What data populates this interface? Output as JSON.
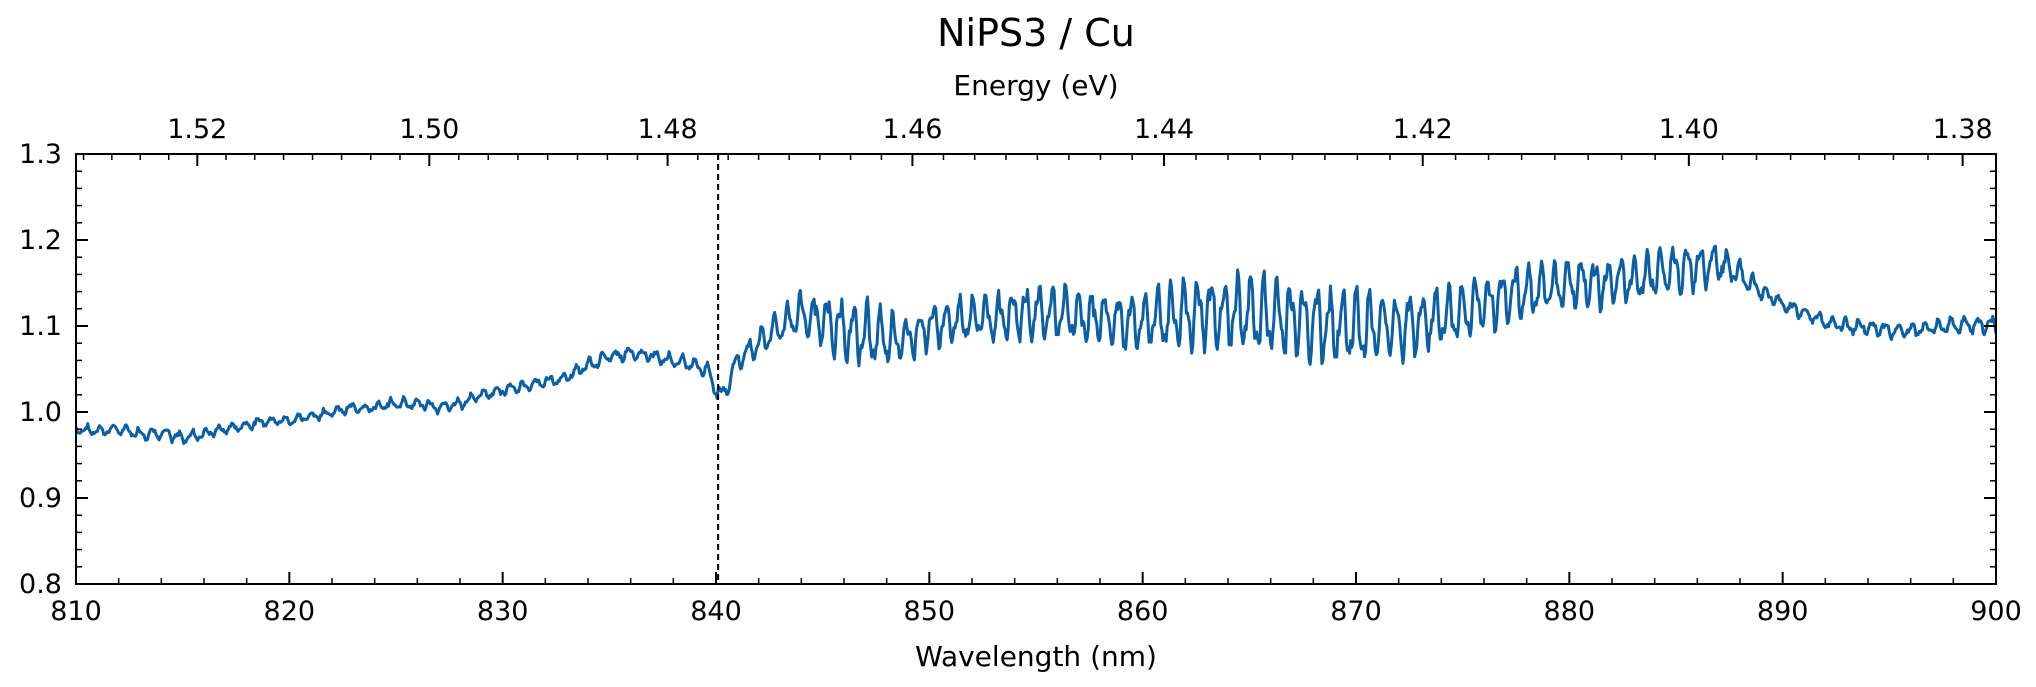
{
  "chart_data": {
    "type": "line",
    "title": "NiPS3 / Cu",
    "xlabel": "Wavelength (nm)",
    "x2label": "Energy (eV)",
    "ylabel": "",
    "xlim": [
      810,
      900
    ],
    "ylim": [
      0.8,
      1.3
    ],
    "x_ticks": [
      810,
      820,
      830,
      840,
      850,
      860,
      870,
      880,
      890,
      900
    ],
    "y_ticks": [
      0.8,
      0.9,
      1.0,
      1.1,
      1.2,
      1.3
    ],
    "x2_ticks": [
      1.52,
      1.5,
      1.48,
      1.46,
      1.44,
      1.42,
      1.4,
      1.38
    ],
    "vline_x": 840.1,
    "line_color": "#0b5fa5",
    "grid": false,
    "series": [
      {
        "x": [
          810,
          811,
          812,
          813,
          814,
          815,
          816,
          817,
          818,
          819,
          820,
          821,
          822,
          823,
          824,
          825,
          826,
          827,
          828,
          829,
          830,
          831,
          832,
          833,
          834,
          835,
          836,
          837,
          838,
          839,
          839.5,
          840,
          840.2,
          840.5,
          841,
          842,
          843,
          844,
          845,
          846,
          847,
          848,
          849,
          850,
          851,
          852,
          853,
          854,
          855,
          856,
          857,
          858,
          859,
          860,
          861,
          862,
          863,
          864,
          865,
          866,
          867,
          868,
          869,
          870,
          871,
          872,
          873,
          874,
          875,
          876,
          877,
          878,
          879,
          880,
          881,
          882,
          883,
          884,
          885,
          886,
          887,
          888,
          889,
          890,
          891,
          892,
          893,
          894,
          895,
          896,
          897,
          898,
          899,
          900
        ],
        "y": [
          0.98,
          0.978,
          0.98,
          0.975,
          0.975,
          0.97,
          0.975,
          0.98,
          0.985,
          0.99,
          0.99,
          0.995,
          1.0,
          1.005,
          1.005,
          1.01,
          1.01,
          1.005,
          1.01,
          1.02,
          1.025,
          1.03,
          1.035,
          1.04,
          1.055,
          1.065,
          1.068,
          1.065,
          1.06,
          1.055,
          1.05,
          1.03,
          1.015,
          1.03,
          1.06,
          1.08,
          1.1,
          1.115,
          1.105,
          1.095,
          1.09,
          1.085,
          1.085,
          1.1,
          1.105,
          1.11,
          1.11,
          1.115,
          1.115,
          1.115,
          1.11,
          1.11,
          1.105,
          1.105,
          1.11,
          1.115,
          1.115,
          1.115,
          1.115,
          1.11,
          1.11,
          1.105,
          1.1,
          1.1,
          1.1,
          1.1,
          1.105,
          1.11,
          1.115,
          1.125,
          1.135,
          1.14,
          1.145,
          1.15,
          1.15,
          1.15,
          1.155,
          1.16,
          1.165,
          1.17,
          1.175,
          1.16,
          1.14,
          1.125,
          1.115,
          1.105,
          1.1,
          1.098,
          1.095,
          1.095,
          1.098,
          1.1,
          1.102,
          1.1
        ],
        "noise": [
          0.004,
          0.004,
          0.005,
          0.005,
          0.005,
          0.005,
          0.005,
          0.004,
          0.004,
          0.004,
          0.004,
          0.004,
          0.004,
          0.004,
          0.004,
          0.005,
          0.005,
          0.005,
          0.005,
          0.005,
          0.005,
          0.005,
          0.005,
          0.005,
          0.006,
          0.006,
          0.006,
          0.006,
          0.006,
          0.007,
          0.008,
          0.01,
          0.01,
          0.01,
          0.01,
          0.012,
          0.015,
          0.02,
          0.025,
          0.03,
          0.03,
          0.025,
          0.02,
          0.02,
          0.02,
          0.02,
          0.022,
          0.025,
          0.025,
          0.025,
          0.025,
          0.025,
          0.025,
          0.028,
          0.03,
          0.032,
          0.035,
          0.035,
          0.038,
          0.038,
          0.035,
          0.035,
          0.035,
          0.035,
          0.032,
          0.03,
          0.03,
          0.028,
          0.028,
          0.025,
          0.025,
          0.025,
          0.022,
          0.022,
          0.022,
          0.022,
          0.022,
          0.022,
          0.022,
          0.02,
          0.018,
          0.012,
          0.008,
          0.006,
          0.006,
          0.006,
          0.006,
          0.006,
          0.006,
          0.006,
          0.006,
          0.008,
          0.008,
          0.008
        ]
      }
    ]
  }
}
